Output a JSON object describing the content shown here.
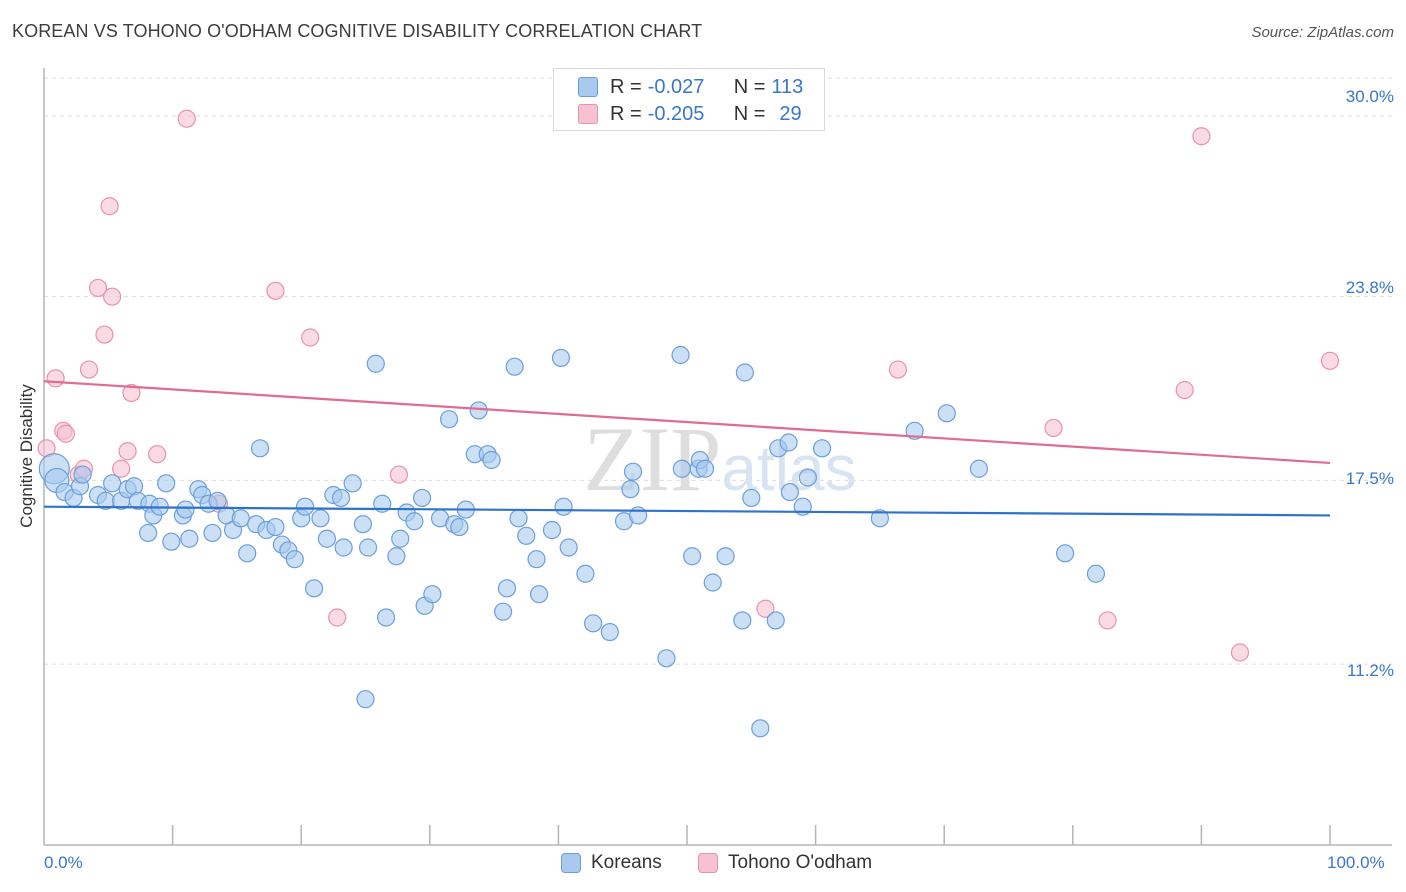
{
  "title": "KOREAN VS TOHONO O'ODHAM COGNITIVE DISABILITY CORRELATION CHART",
  "source": "Source: ZipAtlas.com",
  "watermark": "ZIPatlas",
  "legend": {
    "rows": [
      {
        "r_label": "R =",
        "r_value": "-0.027",
        "n_label": "N =",
        "n_value": "113"
      },
      {
        "r_label": "R =",
        "r_value": "-0.205",
        "n_label": "N =",
        "n_value": "29"
      }
    ]
  },
  "bottom_legend": {
    "koreans": "Koreans",
    "tohono": "Tohono O'odham"
  },
  "colors": {
    "koreans_fill": "#a9c9ef",
    "koreans_stroke": "#6b9fdc",
    "koreans_line": "#2f72c9",
    "tohono_fill": "#f6c1d0",
    "tohono_stroke": "#e892ad",
    "tohono_line": "#e06b94",
    "axis_text": "#3a77c9",
    "grid": "#dcdcdc"
  },
  "chart_data": {
    "type": "scatter",
    "title": "KOREAN VS TOHONO O'ODHAM COGNITIVE DISABILITY CORRELATION CHART",
    "xlabel": "",
    "ylabel": "Cognitive Disability",
    "x_unit": "%",
    "y_unit": "%",
    "xlim": [
      0,
      100
    ],
    "ylim": [
      5.0,
      31.4
    ],
    "x_tick_labels": [
      "0.0%",
      "100.0%"
    ],
    "y_ticks": [
      30.0,
      23.8,
      17.5,
      11.2
    ],
    "y_tick_labels": [
      "30.0%",
      "23.8%",
      "17.5%",
      "11.2%"
    ],
    "grid": "horizontal dashed",
    "legend_position": "top-center",
    "series": [
      {
        "name": "Koreans",
        "R": -0.027,
        "N": 113,
        "trend": {
          "x": [
            0,
            100
          ],
          "y": [
            16.6,
            16.3
          ]
        },
        "points": [
          [
            0.8,
            17.9
          ],
          [
            1.0,
            17.5
          ],
          [
            1.6,
            17.1
          ],
          [
            2.3,
            16.9
          ],
          [
            2.8,
            17.3
          ],
          [
            3.0,
            17.7
          ],
          [
            4.2,
            17.0
          ],
          [
            4.8,
            16.8
          ],
          [
            5.3,
            17.4
          ],
          [
            6.0,
            16.8
          ],
          [
            6.5,
            17.2
          ],
          [
            7.0,
            17.3
          ],
          [
            7.3,
            16.8
          ],
          [
            8.2,
            16.7
          ],
          [
            8.1,
            15.7
          ],
          [
            8.5,
            16.3
          ],
          [
            9.0,
            16.6
          ],
          [
            9.5,
            17.4
          ],
          [
            9.9,
            15.4
          ],
          [
            10.8,
            16.3
          ],
          [
            11.0,
            16.5
          ],
          [
            11.3,
            15.5
          ],
          [
            12.0,
            17.2
          ],
          [
            12.3,
            17.0
          ],
          [
            12.8,
            16.7
          ],
          [
            13.1,
            15.7
          ],
          [
            13.5,
            16.8
          ],
          [
            14.2,
            16.3
          ],
          [
            14.7,
            15.8
          ],
          [
            15.3,
            16.2
          ],
          [
            15.8,
            15.0
          ],
          [
            16.5,
            16.0
          ],
          [
            16.8,
            18.6
          ],
          [
            17.3,
            15.8
          ],
          [
            18.0,
            15.9
          ],
          [
            18.5,
            15.3
          ],
          [
            19.0,
            15.1
          ],
          [
            19.5,
            14.8
          ],
          [
            20.0,
            16.2
          ],
          [
            20.3,
            16.6
          ],
          [
            21.0,
            13.8
          ],
          [
            21.5,
            16.2
          ],
          [
            22.0,
            15.5
          ],
          [
            22.5,
            17.0
          ],
          [
            23.1,
            16.9
          ],
          [
            23.3,
            15.2
          ],
          [
            24.0,
            17.4
          ],
          [
            24.8,
            16.0
          ],
          [
            25.2,
            15.2
          ],
          [
            25.8,
            21.5
          ],
          [
            26.3,
            16.7
          ],
          [
            26.6,
            12.8
          ],
          [
            27.4,
            14.9
          ],
          [
            27.7,
            15.5
          ],
          [
            28.2,
            16.4
          ],
          [
            28.8,
            16.1
          ],
          [
            29.4,
            16.9
          ],
          [
            29.6,
            13.2
          ],
          [
            30.2,
            13.6
          ],
          [
            30.8,
            16.2
          ],
          [
            31.5,
            19.6
          ],
          [
            31.9,
            16.0
          ],
          [
            32.3,
            15.9
          ],
          [
            32.8,
            16.5
          ],
          [
            33.5,
            18.4
          ],
          [
            33.8,
            19.9
          ],
          [
            34.5,
            18.4
          ],
          [
            34.8,
            18.2
          ],
          [
            35.7,
            13.0
          ],
          [
            36.0,
            13.8
          ],
          [
            36.6,
            21.4
          ],
          [
            36.9,
            16.2
          ],
          [
            37.5,
            15.6
          ],
          [
            38.3,
            14.8
          ],
          [
            38.5,
            13.6
          ],
          [
            39.5,
            15.8
          ],
          [
            40.2,
            21.7
          ],
          [
            40.4,
            16.6
          ],
          [
            40.8,
            15.2
          ],
          [
            42.1,
            14.3
          ],
          [
            42.7,
            12.6
          ],
          [
            44.0,
            12.3
          ],
          [
            45.1,
            16.1
          ],
          [
            45.6,
            17.2
          ],
          [
            45.8,
            17.8
          ],
          [
            46.2,
            16.3
          ],
          [
            48.4,
            11.4
          ],
          [
            49.5,
            21.8
          ],
          [
            49.6,
            17.9
          ],
          [
            50.4,
            14.9
          ],
          [
            50.9,
            17.9
          ],
          [
            51.0,
            18.2
          ],
          [
            51.4,
            17.9
          ],
          [
            52.0,
            14.0
          ],
          [
            53.0,
            14.9
          ],
          [
            54.3,
            12.7
          ],
          [
            54.5,
            21.2
          ],
          [
            55.0,
            16.9
          ],
          [
            55.7,
            9.0
          ],
          [
            56.9,
            12.7
          ],
          [
            57.1,
            18.6
          ],
          [
            57.9,
            18.8
          ],
          [
            58.0,
            17.1
          ],
          [
            59.0,
            16.6
          ],
          [
            59.4,
            17.6
          ],
          [
            60.5,
            18.6
          ],
          [
            65.0,
            16.2
          ],
          [
            67.7,
            19.2
          ],
          [
            70.2,
            19.8
          ],
          [
            72.7,
            17.9
          ],
          [
            79.4,
            15.0
          ],
          [
            81.8,
            14.3
          ],
          [
            25.0,
            10.0
          ]
        ]
      },
      {
        "name": "Tohono O'odham",
        "R": -0.205,
        "N": 29,
        "trend": {
          "x": [
            0,
            100
          ],
          "y": [
            20.9,
            18.1
          ]
        },
        "points": [
          [
            0.2,
            18.6
          ],
          [
            0.9,
            21.0
          ],
          [
            1.5,
            19.2
          ],
          [
            1.7,
            19.1
          ],
          [
            2.7,
            17.7
          ],
          [
            3.1,
            17.9
          ],
          [
            3.5,
            21.3
          ],
          [
            4.2,
            24.1
          ],
          [
            4.7,
            22.5
          ],
          [
            5.1,
            26.9
          ],
          [
            5.3,
            23.8
          ],
          [
            6.0,
            17.9
          ],
          [
            6.5,
            18.5
          ],
          [
            6.8,
            20.5
          ],
          [
            8.8,
            18.4
          ],
          [
            11.1,
            29.9
          ],
          [
            13.6,
            16.7
          ],
          [
            18.0,
            24.0
          ],
          [
            20.7,
            22.4
          ],
          [
            22.8,
            12.8
          ],
          [
            27.6,
            17.7
          ],
          [
            56.1,
            13.1
          ],
          [
            66.4,
            21.3
          ],
          [
            78.5,
            19.3
          ],
          [
            82.7,
            12.7
          ],
          [
            88.7,
            20.6
          ],
          [
            90.0,
            29.3
          ],
          [
            93.0,
            11.6
          ],
          [
            100.0,
            21.6
          ]
        ]
      }
    ]
  }
}
